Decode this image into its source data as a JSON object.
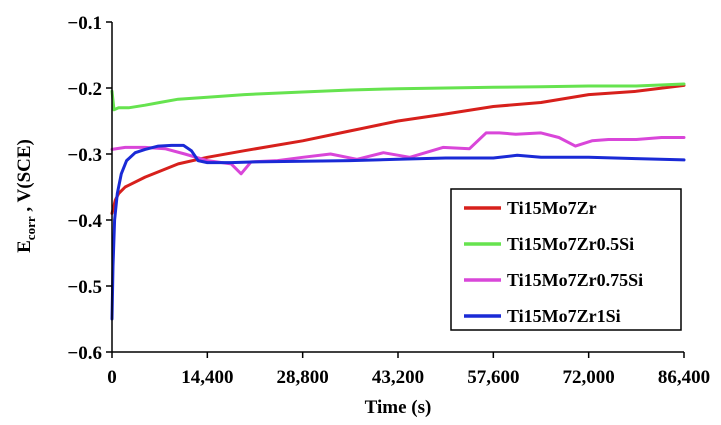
{
  "chart_data": {
    "type": "line",
    "xlabel": "Time (s)",
    "ylabel": {
      "main": "E",
      "sub": "corr",
      "rest": " , V(SCE)"
    },
    "xlim": [
      0,
      86400
    ],
    "ylim": [
      -0.6,
      -0.1
    ],
    "x_ticks": [
      0,
      14400,
      28800,
      43200,
      57600,
      72000,
      86400
    ],
    "x_tick_labels": [
      "0",
      "14,400",
      "28,800",
      "43,200",
      "57,600",
      "72,000",
      "86,400"
    ],
    "y_ticks": [
      -0.1,
      -0.2,
      -0.3,
      -0.4,
      -0.5,
      -0.6
    ],
    "y_tick_labels": [
      "−0.1",
      "−0.2",
      "−0.3",
      "−0.4",
      "−0.5",
      "−0.6"
    ],
    "grid": false,
    "legend_position": "bottom-right",
    "series": [
      {
        "name": "Ti15Mo7Zr",
        "color": "#d7201c",
        "x": [
          0,
          500,
          1000,
          2000,
          3000,
          5000,
          7500,
          10000,
          14400,
          20000,
          28800,
          36000,
          43200,
          50000,
          57600,
          64800,
          72000,
          79200,
          86400
        ],
        "y": [
          -0.39,
          -0.37,
          -0.36,
          -0.35,
          -0.345,
          -0.335,
          -0.325,
          -0.315,
          -0.305,
          -0.295,
          -0.28,
          -0.265,
          -0.25,
          -0.24,
          -0.228,
          -0.222,
          -0.21,
          -0.205,
          -0.196
        ]
      },
      {
        "name": "Ti15Mo7Zr0.5Si",
        "color": "#66e34f",
        "x": [
          0,
          300,
          1000,
          2500,
          5000,
          7200,
          10000,
          14400,
          20000,
          28800,
          36000,
          43200,
          50400,
          57600,
          64800,
          72000,
          79200,
          86400
        ],
        "y": [
          -0.205,
          -0.233,
          -0.23,
          -0.23,
          -0.226,
          -0.222,
          -0.217,
          -0.214,
          -0.21,
          -0.206,
          -0.203,
          -0.201,
          -0.2,
          -0.199,
          -0.198,
          -0.197,
          -0.197,
          -0.194
        ]
      },
      {
        "name": "Ti15Mo7Zr0.75Si",
        "color": "#d946d9",
        "x": [
          0,
          2000,
          5000,
          8000,
          11000,
          14400,
          18000,
          19500,
          21000,
          25000,
          28800,
          33000,
          37000,
          41000,
          45000,
          50000,
          54000,
          56500,
          58500,
          61000,
          64800,
          67500,
          70000,
          72500,
          75000,
          79200,
          83000,
          86400
        ],
        "y": [
          -0.293,
          -0.29,
          -0.29,
          -0.292,
          -0.3,
          -0.31,
          -0.315,
          -0.33,
          -0.312,
          -0.31,
          -0.305,
          -0.3,
          -0.308,
          -0.298,
          -0.305,
          -0.29,
          -0.292,
          -0.268,
          -0.268,
          -0.27,
          -0.268,
          -0.275,
          -0.288,
          -0.28,
          -0.278,
          -0.278,
          -0.275,
          -0.275
        ]
      },
      {
        "name": "Ti15Mo7Zr1Si",
        "color": "#1a2ad6",
        "x": [
          0,
          150,
          400,
          800,
          1400,
          2200,
          3500,
          5000,
          7000,
          9000,
          10800,
          12000,
          13000,
          14400,
          18000,
          21600,
          28800,
          36000,
          43200,
          50400,
          54000,
          57600,
          61200,
          64800,
          72000,
          79200,
          86400
        ],
        "y": [
          -0.55,
          -0.47,
          -0.4,
          -0.36,
          -0.33,
          -0.31,
          -0.298,
          -0.293,
          -0.288,
          -0.287,
          -0.287,
          -0.295,
          -0.31,
          -0.313,
          -0.313,
          -0.312,
          -0.311,
          -0.31,
          -0.308,
          -0.306,
          -0.306,
          -0.306,
          -0.302,
          -0.305,
          -0.305,
          -0.307,
          -0.309
        ]
      }
    ]
  }
}
